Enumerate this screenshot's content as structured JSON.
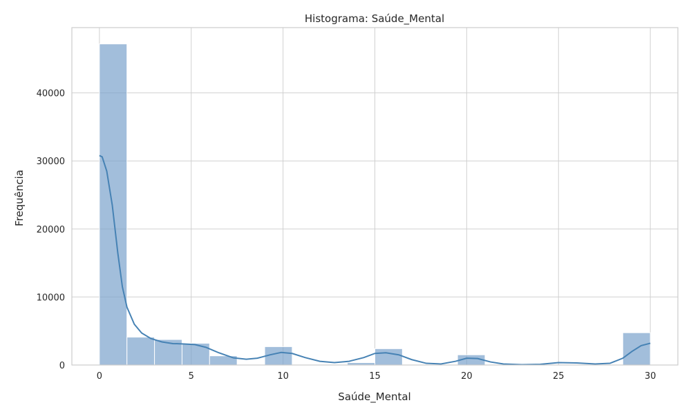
{
  "chart_data": {
    "type": "bar",
    "title": "Histograma: Saúde_Mental",
    "xlabel": "Saúde_Mental",
    "ylabel": "Frequência",
    "xlim": [
      -1.5,
      31.5
    ],
    "ylim": [
      0,
      49600
    ],
    "xticks": [
      0,
      5,
      10,
      15,
      20,
      25,
      30
    ],
    "yticks": [
      0,
      10000,
      20000,
      30000,
      40000
    ],
    "grid": true,
    "bin_edges": [
      0,
      1.5,
      3,
      4.5,
      6,
      7.5,
      9,
      10.5,
      12,
      13.5,
      15,
      16.5,
      18,
      19.5,
      21,
      22.5,
      24,
      25.5,
      27,
      28.5,
      30
    ],
    "values": [
      47200,
      4100,
      3750,
      3200,
      1350,
      0,
      2700,
      0,
      0,
      350,
      2400,
      0,
      0,
      1500,
      0,
      0,
      0,
      0,
      0,
      4750
    ],
    "kde": {
      "x": [
        0,
        0.15,
        0.4,
        0.7,
        1.0,
        1.25,
        1.5,
        1.9,
        2.3,
        2.8,
        3.4,
        4.0,
        4.6,
        5.2,
        5.8,
        6.5,
        7.3,
        8.0,
        8.6,
        9.3,
        9.9,
        10.5,
        11.2,
        12.0,
        12.8,
        13.6,
        14.4,
        15.0,
        15.6,
        16.3,
        17.0,
        17.8,
        18.6,
        19.4,
        20.0,
        20.6,
        21.3,
        22.0,
        23.0,
        24.0,
        25.0,
        26.0,
        27.0,
        27.8,
        28.5,
        29.0,
        29.5,
        30.0
      ],
      "y": [
        30800,
        30600,
        28500,
        23500,
        16500,
        11500,
        8500,
        6000,
        4700,
        3900,
        3400,
        3150,
        3100,
        3000,
        2600,
        1800,
        1050,
        850,
        1000,
        1500,
        1850,
        1700,
        1100,
        550,
        350,
        550,
        1100,
        1700,
        1800,
        1500,
        800,
        250,
        150,
        550,
        1000,
        950,
        450,
        150,
        50,
        100,
        350,
        300,
        150,
        250,
        1000,
        2000,
        2850,
        3200
      ]
    }
  }
}
